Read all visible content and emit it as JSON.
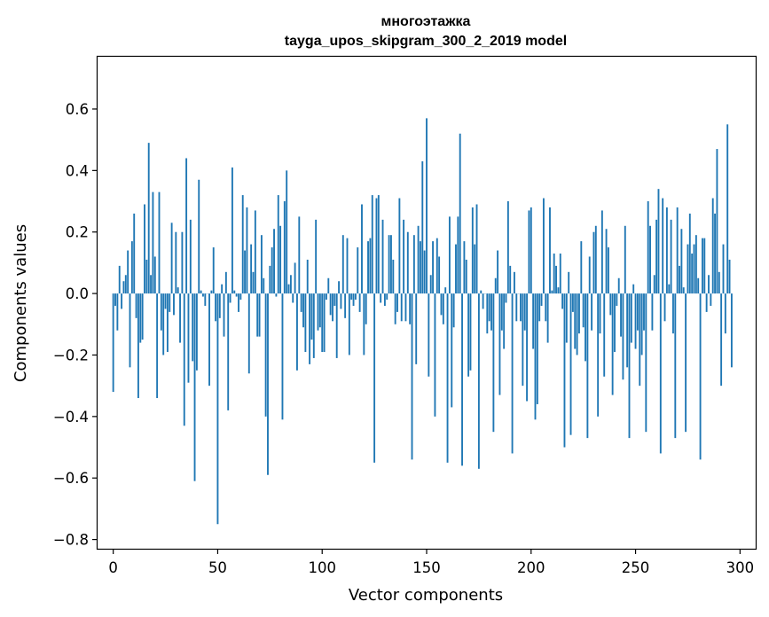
{
  "chart_data": {
    "type": "bar",
    "title": "многоэтажка",
    "subtitle": "tayga_upos_skipgram_300_2_2019 model",
    "xlabel": "Vector components",
    "ylabel": "Components values",
    "xlim": [
      -7.5,
      307.5
    ],
    "ylim": [
      -0.83,
      0.77
    ],
    "xticks": [
      0,
      50,
      100,
      150,
      200,
      250,
      300
    ],
    "yticks": [
      -0.8,
      -0.6,
      -0.4,
      -0.2,
      0.0,
      0.2,
      0.4,
      0.6
    ],
    "ytick_labels": [
      "−0.8",
      "−0.6",
      "−0.4",
      "−0.2",
      "0.0",
      "0.2",
      "0.4",
      "0.6"
    ],
    "bar_color": "#1f77b4",
    "grid": false,
    "values": [
      -0.32,
      -0.04,
      -0.12,
      0.09,
      -0.05,
      0.04,
      0.06,
      0.14,
      -0.24,
      0.17,
      0.26,
      -0.08,
      -0.34,
      -0.16,
      -0.15,
      0.29,
      0.11,
      0.49,
      0.06,
      0.33,
      0.12,
      -0.34,
      0.33,
      -0.12,
      -0.2,
      -0.05,
      -0.19,
      -0.06,
      0.23,
      -0.07,
      0.2,
      0.02,
      -0.16,
      0.2,
      -0.43,
      0.44,
      -0.29,
      0.24,
      -0.22,
      -0.61,
      -0.25,
      0.37,
      0.01,
      -0.01,
      -0.04,
      0.0,
      -0.3,
      0.01,
      0.15,
      -0.09,
      -0.75,
      -0.08,
      0.03,
      -0.14,
      0.07,
      -0.38,
      -0.03,
      0.41,
      0.01,
      -0.01,
      -0.06,
      -0.02,
      0.32,
      0.14,
      0.28,
      -0.26,
      0.16,
      0.07,
      0.27,
      -0.14,
      -0.14,
      0.19,
      0.05,
      -0.4,
      -0.59,
      0.09,
      0.15,
      0.21,
      -0.01,
      0.32,
      0.22,
      -0.41,
      0.3,
      0.4,
      0.03,
      0.06,
      -0.03,
      0.1,
      -0.25,
      0.25,
      -0.06,
      -0.11,
      -0.19,
      0.11,
      -0.23,
      -0.15,
      -0.21,
      0.24,
      -0.12,
      -0.11,
      -0.19,
      -0.19,
      -0.02,
      0.05,
      -0.07,
      -0.09,
      -0.04,
      -0.21,
      0.04,
      -0.05,
      0.19,
      -0.08,
      0.18,
      -0.2,
      -0.02,
      -0.04,
      -0.02,
      0.15,
      -0.06,
      0.29,
      -0.2,
      -0.1,
      0.17,
      0.18,
      0.32,
      -0.55,
      0.31,
      0.32,
      -0.03,
      0.24,
      -0.04,
      -0.02,
      0.19,
      0.19,
      0.11,
      -0.1,
      -0.06,
      0.31,
      -0.09,
      0.24,
      -0.09,
      0.2,
      -0.1,
      -0.54,
      0.19,
      -0.23,
      0.22,
      0.17,
      0.43,
      0.14,
      0.57,
      -0.27,
      0.06,
      0.17,
      -0.4,
      0.18,
      0.12,
      -0.07,
      -0.1,
      0.02,
      -0.55,
      0.25,
      -0.37,
      -0.11,
      0.16,
      0.25,
      0.52,
      -0.56,
      0.17,
      0.11,
      -0.27,
      -0.25,
      0.28,
      0.16,
      0.29,
      -0.57,
      0.01,
      -0.05,
      0.0,
      -0.13,
      -0.09,
      -0.12,
      -0.45,
      0.05,
      0.14,
      -0.33,
      -0.12,
      -0.18,
      -0.03,
      0.3,
      0.09,
      -0.52,
      0.07,
      -0.09,
      0.0,
      -0.09,
      -0.3,
      -0.12,
      -0.35,
      0.27,
      0.28,
      -0.18,
      -0.41,
      -0.36,
      -0.09,
      -0.04,
      0.31,
      -0.09,
      -0.16,
      0.28,
      0.01,
      0.13,
      0.09,
      0.02,
      0.13,
      -0.05,
      -0.5,
      -0.16,
      0.07,
      -0.46,
      -0.06,
      -0.18,
      -0.2,
      -0.13,
      0.17,
      -0.11,
      -0.22,
      -0.47,
      0.12,
      -0.12,
      0.2,
      0.22,
      -0.4,
      -0.13,
      0.27,
      -0.27,
      0.21,
      0.15,
      -0.07,
      -0.33,
      -0.19,
      -0.04,
      0.05,
      -0.14,
      -0.28,
      0.22,
      -0.24,
      -0.47,
      -0.16,
      0.03,
      -0.18,
      -0.12,
      -0.3,
      -0.2,
      -0.12,
      -0.45,
      0.3,
      0.22,
      -0.12,
      0.06,
      0.24,
      0.34,
      -0.52,
      0.31,
      -0.09,
      0.28,
      0.03,
      0.24,
      -0.13,
      -0.47,
      0.28,
      0.09,
      0.21,
      0.02,
      -0.45,
      0.16,
      0.26,
      0.13,
      0.16,
      0.19,
      0.05,
      -0.54,
      0.18,
      0.18,
      -0.06,
      0.06,
      -0.04,
      0.31,
      0.26,
      0.47,
      0.07,
      -0.3,
      0.16,
      -0.13,
      0.55,
      0.11,
      -0.24
    ]
  }
}
